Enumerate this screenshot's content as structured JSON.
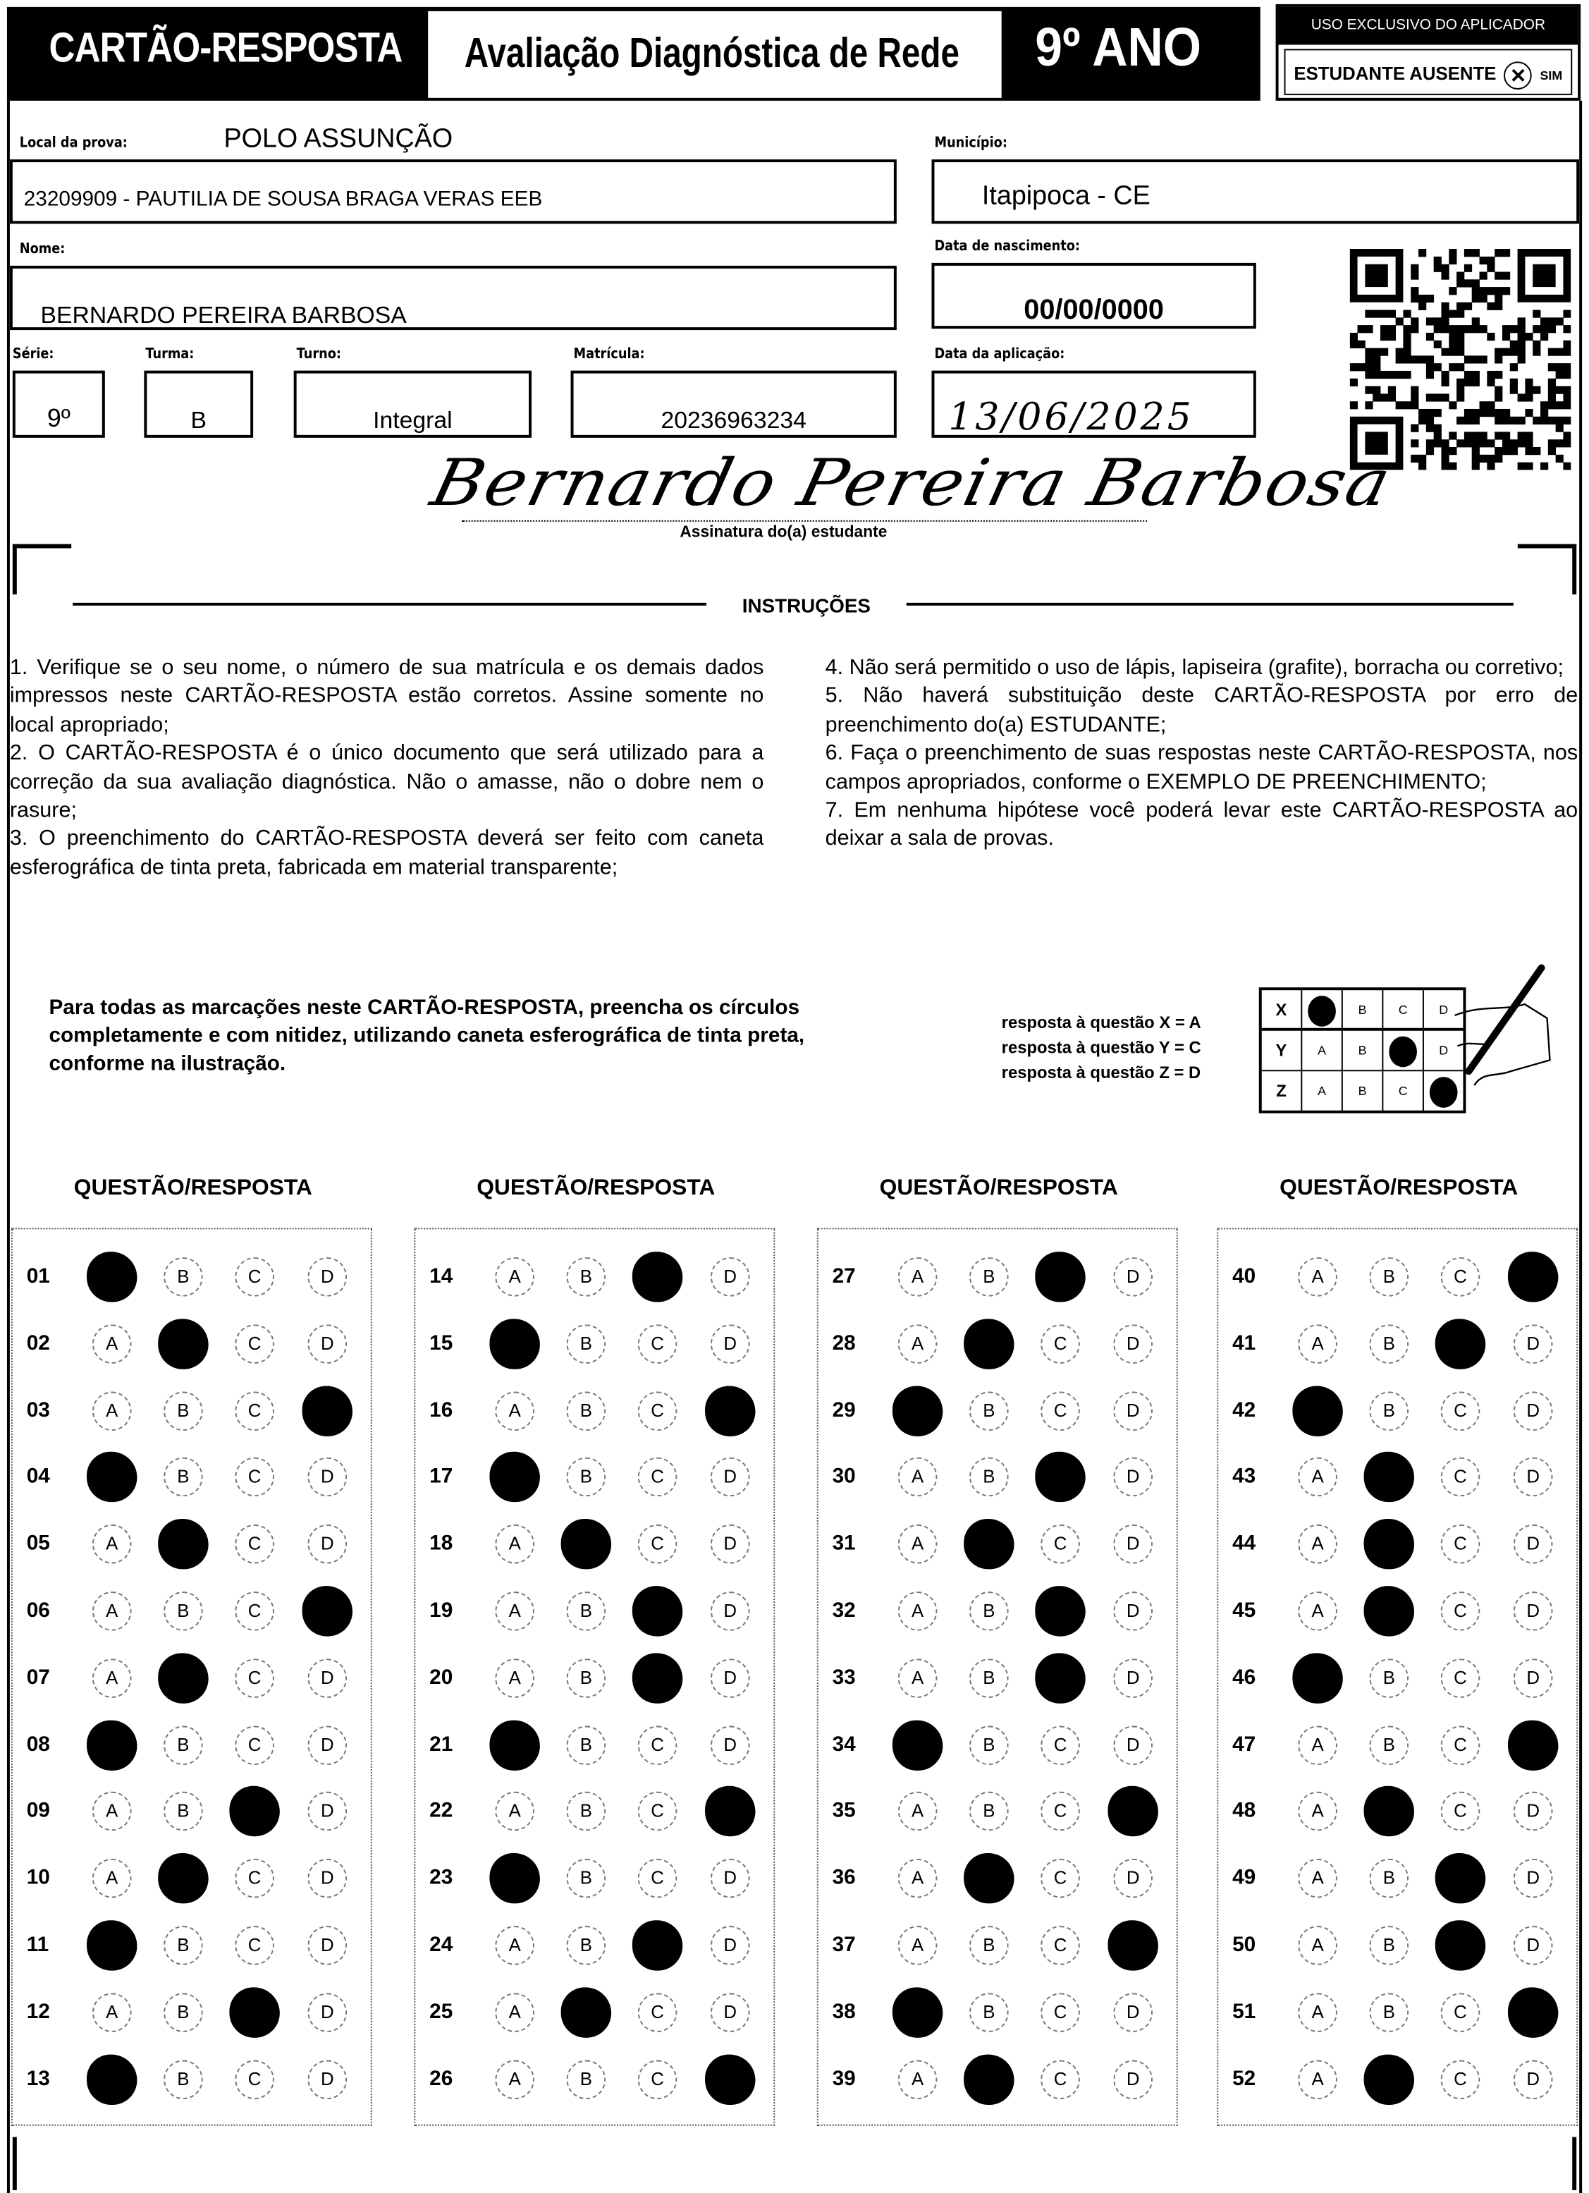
{
  "header": {
    "card_title": "CARTÃO-RESPOSTA",
    "exam_title": "Avaliação Diagnóstica de Rede",
    "grade_badge": "9º ANO",
    "applicator_only": "USO EXCLUSIVO DO APLICADOR",
    "absent_label": "ESTUDANTE AUSENTE",
    "absent_option": "SIM",
    "absent_marked": true
  },
  "fields": {
    "local_label": "Local da prova:",
    "local_value": "POLO ASSUNÇÃO",
    "school_value": "23209909 - PAUTILIA DE SOUSA BRAGA VERAS EEB",
    "municipio_label": "Município:",
    "municipio_value": "Itapipoca - CE",
    "nome_label": "Nome:",
    "nome_value": "BERNARDO PEREIRA BARBOSA",
    "nascimento_label": "Data de nascimento:",
    "nascimento_value": "00/00/0000",
    "serie_label": "Série:",
    "serie_value": "9º",
    "turma_label": "Turma:",
    "turma_value": "B",
    "turno_label": "Turno:",
    "turno_value": "Integral",
    "matricula_label": "Matrícula:",
    "matricula_value": "20236963234",
    "aplicacao_label": "Data da aplicação:",
    "aplicacao_value": "13/06/2025",
    "signature": "Bernardo Pereira Barbosa",
    "signature_label": "Assinatura do(a) estudante"
  },
  "instructions": {
    "title": "INSTRUÇÕES",
    "left": [
      "1. Verifique se o seu nome, o número de sua matrícula e os demais dados impressos neste CARTÃO-RESPOSTA estão corretos. Assine somente no local apropriado;",
      "2. O CARTÃO-RESPOSTA é o único documento que será utilizado para a correção da sua avaliação diagnóstica. Não o amasse, não o dobre nem o rasure;",
      "3. O preenchimento do CARTÃO-RESPOSTA deverá ser feito com caneta esferográfica de tinta preta, fabricada em material transparente;"
    ],
    "right": [
      "4. Não será permitido o uso de lápis, lapiseira (grafite), borracha ou corretivo;",
      "5. Não haverá substituição deste CARTÃO-RESPOSTA por erro de preenchimento do(a) ESTUDANTE;",
      "6. Faça o preenchimento de suas respostas neste CARTÃO-RESPOSTA, nos campos apropriados, conforme o EXEMPLO DE PREENCHIMENTO;",
      "7. Em nenhuma hipótese você poderá levar este CARTÃO-RESPOSTA ao deixar a sala de provas."
    ]
  },
  "example": {
    "text": "Para todas as marcações neste CARTÃO-RESPOSTA, preencha os círculos completamente e com nitidez, utilizando caneta esferográfica de tinta preta, conforme na ilustração.",
    "legend": [
      "resposta à questão X = A",
      "resposta à questão Y = C",
      "resposta à questão Z = D"
    ],
    "rows": [
      {
        "label": "X",
        "answer": "A"
      },
      {
        "label": "Y",
        "answer": "C"
      },
      {
        "label": "Z",
        "answer": "D"
      }
    ]
  },
  "answers": {
    "column_header": "QUESTÃO/RESPOSTA",
    "options": [
      "A",
      "B",
      "C",
      "D"
    ],
    "columns": [
      [
        [
          "01",
          "A"
        ],
        [
          "02",
          "B"
        ],
        [
          "03",
          "D"
        ],
        [
          "04",
          "A"
        ],
        [
          "05",
          "B"
        ],
        [
          "06",
          "D"
        ],
        [
          "07",
          "B"
        ],
        [
          "08",
          "A"
        ],
        [
          "09",
          "C"
        ],
        [
          "10",
          "B"
        ],
        [
          "11",
          "A"
        ],
        [
          "12",
          "C"
        ],
        [
          "13",
          "A"
        ]
      ],
      [
        [
          "14",
          "C"
        ],
        [
          "15",
          "A"
        ],
        [
          "16",
          "D"
        ],
        [
          "17",
          "A"
        ],
        [
          "18",
          "B"
        ],
        [
          "19",
          "C"
        ],
        [
          "20",
          "C"
        ],
        [
          "21",
          "A"
        ],
        [
          "22",
          "D"
        ],
        [
          "23",
          "A"
        ],
        [
          "24",
          "C"
        ],
        [
          "25",
          "B"
        ],
        [
          "26",
          "D"
        ]
      ],
      [
        [
          "27",
          "C"
        ],
        [
          "28",
          "B"
        ],
        [
          "29",
          "A"
        ],
        [
          "30",
          "C"
        ],
        [
          "31",
          "B"
        ],
        [
          "32",
          "C"
        ],
        [
          "33",
          "C"
        ],
        [
          "34",
          "A"
        ],
        [
          "35",
          "D"
        ],
        [
          "36",
          "B"
        ],
        [
          "37",
          "D"
        ],
        [
          "38",
          "A"
        ],
        [
          "39",
          "B"
        ]
      ],
      [
        [
          "40",
          "D"
        ],
        [
          "41",
          "C"
        ],
        [
          "42",
          "A"
        ],
        [
          "43",
          "B"
        ],
        [
          "44",
          "B"
        ],
        [
          "45",
          "B"
        ],
        [
          "46",
          "A"
        ],
        [
          "47",
          "D"
        ],
        [
          "48",
          "B"
        ],
        [
          "49",
          "C"
        ],
        [
          "50",
          "C"
        ],
        [
          "51",
          "D"
        ],
        [
          "52",
          "B"
        ]
      ]
    ]
  }
}
